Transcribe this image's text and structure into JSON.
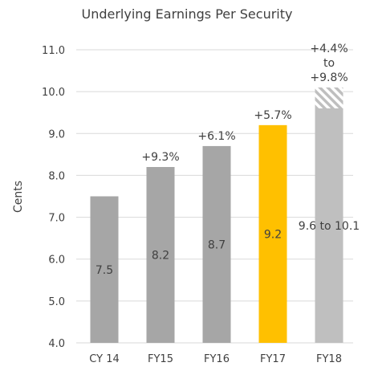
{
  "chart_data": {
    "type": "bar",
    "title": "Underlying Earnings Per Security",
    "ylabel": "Cents",
    "xlabel": "",
    "ylim": [
      4.0,
      11.0
    ],
    "yticks": [
      "4.0",
      "5.0",
      "6.0",
      "7.0",
      "8.0",
      "9.0",
      "10.0",
      "11.0"
    ],
    "grid": true,
    "categories": [
      "CY 14",
      "FY15",
      "FY16",
      "FY17",
      "FY18"
    ],
    "values": [
      7.5,
      8.2,
      8.7,
      9.2,
      9.6
    ],
    "range_high": [
      null,
      null,
      null,
      null,
      10.1
    ],
    "value_labels": [
      "7.5",
      "8.2",
      "8.7",
      "9.2",
      "9.6 to 10.1"
    ],
    "growth_labels": [
      [],
      [
        "+9.3%"
      ],
      [
        "+6.1%"
      ],
      [
        "+5.7%"
      ],
      [
        "+4.4%",
        "to",
        "+9.8%"
      ]
    ],
    "colors": [
      "#a6a6a6",
      "#a6a6a6",
      "#a6a6a6",
      "#ffc000",
      "#bfbfbf"
    ],
    "highlight_color": "#ffc000"
  }
}
